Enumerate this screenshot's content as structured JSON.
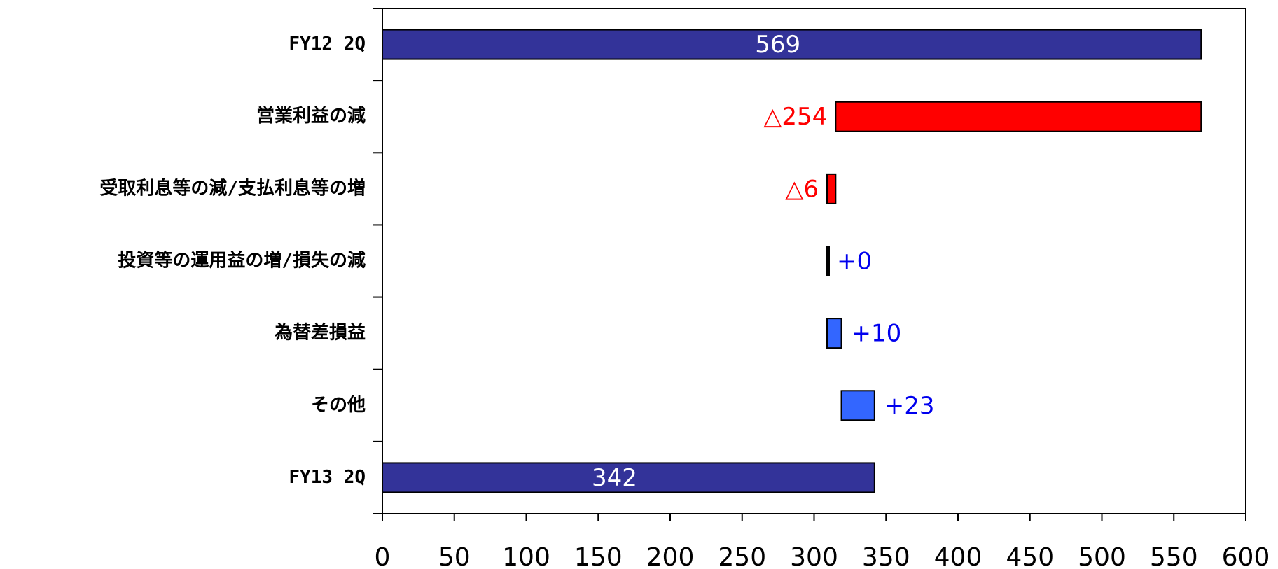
{
  "chart_data": {
    "type": "waterfall",
    "categories": [
      "FY12 2Q",
      "営業利益の減",
      "受取利息等の減/支払利息等の増",
      "投資等の運用益の増/損失の減",
      "為替差損益",
      "その他",
      "FY13 2Q"
    ],
    "values": [
      569,
      -254,
      -6,
      0,
      10,
      23,
      342
    ],
    "value_labels": [
      "569",
      "△254",
      "△6",
      "+0",
      "+10",
      "+23",
      "342"
    ],
    "colors": {
      "total": "#333399",
      "decrease": "#ff0000",
      "increase": "#3366ff"
    },
    "xlim": [
      0,
      600
    ],
    "xticks": [
      0,
      50,
      100,
      150,
      200,
      250,
      300,
      350,
      400,
      450,
      500,
      550,
      600
    ]
  }
}
